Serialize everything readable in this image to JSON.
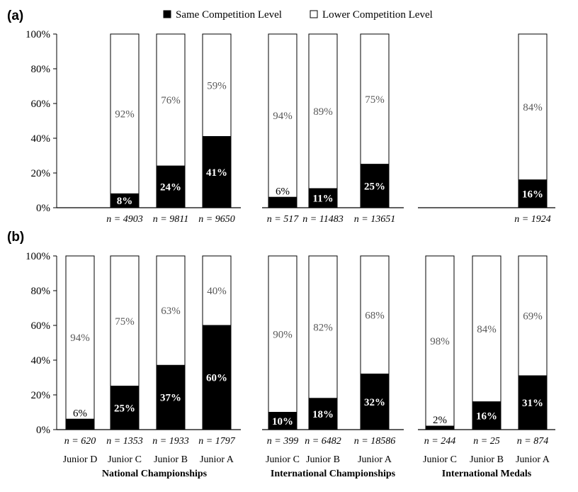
{
  "legend": {
    "position": "top-center",
    "items": [
      {
        "label": "Same Competition Level",
        "color": "#000000"
      },
      {
        "label": "Lower Competition Level",
        "color": "#ffffff"
      }
    ]
  },
  "x_group_titles": [
    "National Championships",
    "International Championships",
    "International Medals"
  ],
  "chart_data": [
    {
      "type": "bar",
      "stacked": true,
      "panel_label": "(a)",
      "ylim": [
        0,
        100
      ],
      "yticks": [
        "0%",
        "20%",
        "40%",
        "60%",
        "80%",
        "100%"
      ],
      "groups": [
        {
          "title": "National Championships",
          "bars": [
            {
              "category": "Junior D",
              "present": false
            },
            {
              "category": "Junior C",
              "present": true,
              "same": 8,
              "lower": 92,
              "n": "n = 4903"
            },
            {
              "category": "Junior B",
              "present": true,
              "same": 24,
              "lower": 76,
              "n": "n = 9811"
            },
            {
              "category": "Junior A",
              "present": true,
              "same": 41,
              "lower": 59,
              "n": "n = 9650"
            }
          ]
        },
        {
          "title": "International Championships",
          "bars": [
            {
              "category": "Junior C",
              "present": true,
              "same": 6,
              "lower": 94,
              "n": "n = 517"
            },
            {
              "category": "Junior B",
              "present": true,
              "same": 11,
              "lower": 89,
              "n": "n = 11483"
            },
            {
              "category": "Junior A",
              "present": true,
              "same": 25,
              "lower": 75,
              "n": "n = 13651"
            }
          ]
        },
        {
          "title": "International Medals",
          "bars": [
            {
              "category": "Junior C",
              "present": false
            },
            {
              "category": "Junior B",
              "present": false
            },
            {
              "category": "Junior A",
              "present": true,
              "same": 16,
              "lower": 84,
              "n": "n = 1924"
            }
          ]
        }
      ]
    },
    {
      "type": "bar",
      "stacked": true,
      "panel_label": "(b)",
      "ylim": [
        0,
        100
      ],
      "yticks": [
        "0%",
        "20%",
        "40%",
        "60%",
        "80%",
        "100%"
      ],
      "groups": [
        {
          "title": "National Championships",
          "bars": [
            {
              "category": "Junior D",
              "present": true,
              "same": 6,
              "lower": 94,
              "n": "n = 620"
            },
            {
              "category": "Junior C",
              "present": true,
              "same": 25,
              "lower": 75,
              "n": "n = 1353"
            },
            {
              "category": "Junior B",
              "present": true,
              "same": 37,
              "lower": 63,
              "n": "n = 1933"
            },
            {
              "category": "Junior A",
              "present": true,
              "same": 60,
              "lower": 40,
              "n": "n = 1797"
            }
          ]
        },
        {
          "title": "International Championships",
          "bars": [
            {
              "category": "Junior C",
              "present": true,
              "same": 10,
              "lower": 90,
              "n": "n = 399"
            },
            {
              "category": "Junior B",
              "present": true,
              "same": 18,
              "lower": 82,
              "n": "n = 6482"
            },
            {
              "category": "Junior A",
              "present": true,
              "same": 32,
              "lower": 68,
              "n": "n = 18586"
            }
          ]
        },
        {
          "title": "International Medals",
          "bars": [
            {
              "category": "Junior C",
              "present": true,
              "same": 2,
              "lower": 98,
              "n": "n = 244"
            },
            {
              "category": "Junior B",
              "present": true,
              "same": 16,
              "lower": 84,
              "n": "n = 25"
            },
            {
              "category": "Junior A",
              "present": true,
              "same": 31,
              "lower": 69,
              "n": "n = 874"
            }
          ]
        }
      ]
    }
  ]
}
